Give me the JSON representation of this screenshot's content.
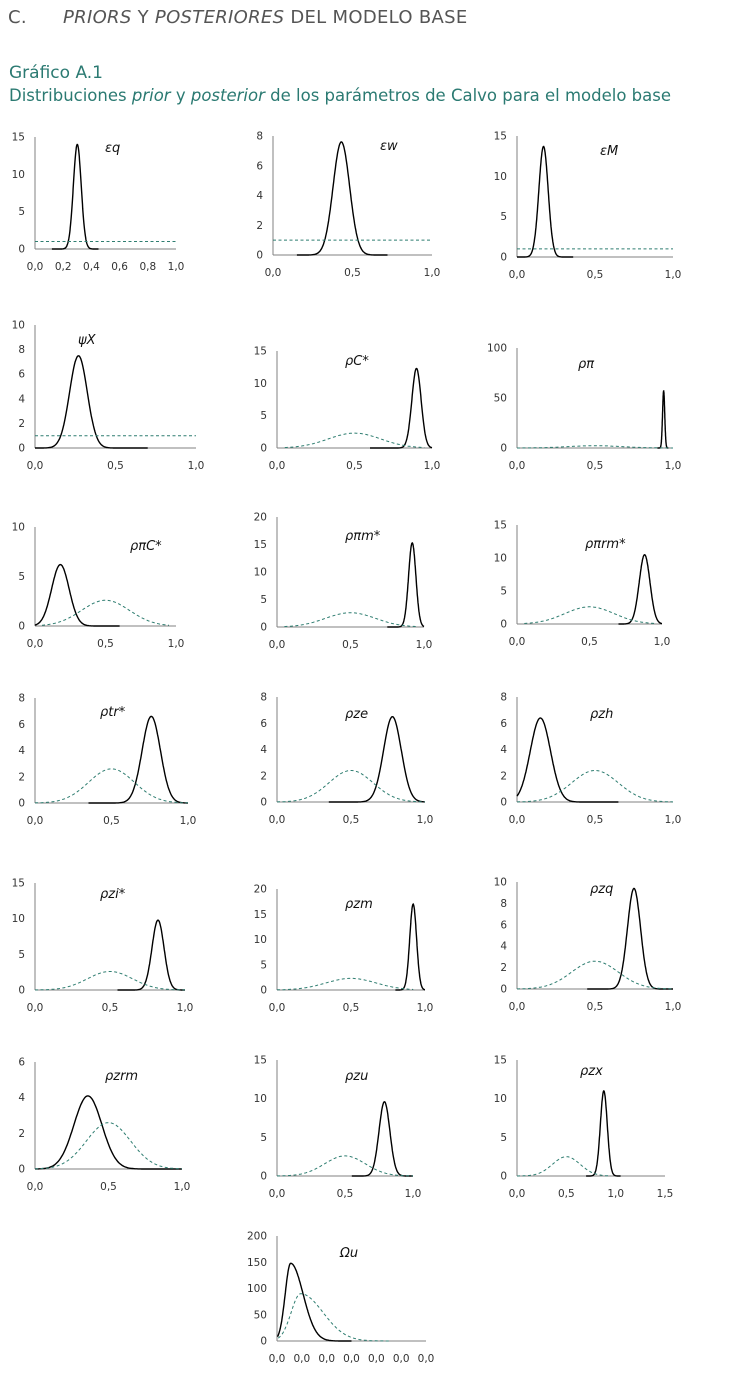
{
  "section": {
    "letter": "C.",
    "title_italic_1": "PRIORS",
    "title_mid": " Y ",
    "title_italic_2": "POSTERIORES",
    "title_end": " DEL MODELO BASE"
  },
  "figure": {
    "label": "Gráfico A.1",
    "title_part1": "Distribuciones ",
    "title_prior": "prior",
    "title_part2": " y ",
    "title_posterior": "posterior",
    "title_part3": " de los parámetros de Calvo para el modelo base"
  },
  "colors": {
    "posterior": "#000000",
    "prior": "#2e7d70",
    "axis": "#808080",
    "tick_text": "#333333"
  },
  "chart_data": [
    {
      "type": "line",
      "label": "εq",
      "xlim": [
        0,
        1
      ],
      "ylim": [
        0,
        15
      ],
      "xticks": [
        "0,0",
        "0,2",
        "0,4",
        "0,6",
        "0,8",
        "1,0"
      ],
      "yticks": [
        0,
        5,
        10,
        15
      ],
      "series": [
        {
          "kind": "posterior",
          "dist": "normal",
          "mean": 0.3,
          "sd": 0.028,
          "peak": 14,
          "xmin": 0.12,
          "xmax": 0.45
        },
        {
          "kind": "prior",
          "dist": "uniform",
          "x0": 0,
          "x1": 1,
          "level": 1
        }
      ]
    },
    {
      "type": "line",
      "label": "εw",
      "xlim": [
        0,
        1
      ],
      "ylim": [
        0,
        8
      ],
      "xticks": [
        "0,0",
        "0,5",
        "1,0"
      ],
      "yticks": [
        0,
        2,
        4,
        6,
        8
      ],
      "series": [
        {
          "kind": "posterior",
          "dist": "normal",
          "mean": 0.43,
          "sd": 0.052,
          "peak": 7.6,
          "xmin": 0.15,
          "xmax": 0.72
        },
        {
          "kind": "prior",
          "dist": "uniform",
          "x0": 0,
          "x1": 1,
          "level": 1
        }
      ]
    },
    {
      "type": "line",
      "label": "εM",
      "xlim": [
        0,
        1
      ],
      "ylim": [
        0,
        15
      ],
      "xticks": [
        "0,0",
        "0,5",
        "1,0"
      ],
      "yticks": [
        0,
        5,
        10,
        15
      ],
      "series": [
        {
          "kind": "posterior",
          "dist": "normal",
          "mean": 0.17,
          "sd": 0.03,
          "peak": 13.7,
          "xmin": 0,
          "xmax": 0.36
        },
        {
          "kind": "prior",
          "dist": "uniform",
          "x0": 0,
          "x1": 1,
          "level": 1
        }
      ]
    },
    {
      "type": "line",
      "label": "ψX",
      "xlim": [
        0,
        1
      ],
      "ylim": [
        0,
        10
      ],
      "xticks": [
        "0,0",
        "0,5",
        "1,0"
      ],
      "yticks": [
        0,
        2,
        4,
        6,
        8,
        10
      ],
      "series": [
        {
          "kind": "posterior",
          "dist": "normal",
          "mean": 0.27,
          "sd": 0.055,
          "peak": 7.5,
          "xmin": 0,
          "xmax": 0.7
        },
        {
          "kind": "prior",
          "dist": "uniform",
          "x0": 0,
          "x1": 1,
          "level": 1
        }
      ]
    },
    {
      "type": "line",
      "label": "ρC*",
      "xlim": [
        0,
        1
      ],
      "ylim": [
        0,
        15
      ],
      "xticks": [
        "0,0",
        "0,5",
        "1,0"
      ],
      "yticks": [
        0,
        5,
        10,
        15
      ],
      "series": [
        {
          "kind": "posterior",
          "dist": "normal",
          "mean": 0.9,
          "sd": 0.03,
          "peak": 12.3,
          "xmin": 0.6,
          "xmax": 1
        },
        {
          "kind": "prior",
          "dist": "normal",
          "mean": 0.5,
          "sd": 0.17,
          "peak": 2.3,
          "xmin": 0.05,
          "xmax": 0.95
        }
      ]
    },
    {
      "type": "line",
      "label": "ρπ",
      "xlim": [
        0,
        1
      ],
      "ylim": [
        0,
        100
      ],
      "xticks": [
        "0,0",
        "0,5",
        "1,0"
      ],
      "yticks": [
        0,
        50,
        100
      ],
      "series": [
        {
          "kind": "posterior",
          "dist": "normal",
          "mean": 0.94,
          "sd": 0.007,
          "peak": 57,
          "xmin": 0.9,
          "xmax": 0.97
        },
        {
          "kind": "prior",
          "dist": "normal",
          "mean": 0.5,
          "sd": 0.17,
          "peak": 2.3,
          "xmin": 0,
          "xmax": 1
        }
      ]
    },
    {
      "type": "line",
      "label": "ρπC*",
      "xlim": [
        0,
        1
      ],
      "ylim": [
        0,
        10
      ],
      "xticks": [
        "0,0",
        "0,5",
        "1,0"
      ],
      "yticks": [
        0,
        5,
        10
      ],
      "series": [
        {
          "kind": "posterior",
          "dist": "normal",
          "mean": 0.18,
          "sd": 0.062,
          "peak": 6.2,
          "xmin": 0,
          "xmax": 0.6
        },
        {
          "kind": "prior",
          "dist": "normal",
          "mean": 0.5,
          "sd": 0.17,
          "peak": 2.6,
          "xmin": 0.05,
          "xmax": 0.95
        }
      ]
    },
    {
      "type": "line",
      "label": "ρπm*",
      "xlim": [
        0,
        1
      ],
      "ylim": [
        0,
        20
      ],
      "xticks": [
        "0,0",
        "0,5",
        "1,0"
      ],
      "yticks": [
        0,
        5,
        10,
        15,
        20
      ],
      "series": [
        {
          "kind": "posterior",
          "dist": "normal",
          "mean": 0.92,
          "sd": 0.025,
          "peak": 15.3,
          "xmin": 0.75,
          "xmax": 1
        },
        {
          "kind": "prior",
          "dist": "normal",
          "mean": 0.5,
          "sd": 0.17,
          "peak": 2.6,
          "xmin": 0.05,
          "xmax": 0.95
        }
      ]
    },
    {
      "type": "line",
      "label": "ρπrm*",
      "xlim": [
        0,
        1
      ],
      "ylim": [
        0,
        15
      ],
      "xticks": [
        "0,0",
        "0,5",
        "1,0"
      ],
      "yticks": [
        0,
        5,
        10,
        15
      ],
      "series": [
        {
          "kind": "posterior",
          "dist": "normal",
          "mean": 0.88,
          "sd": 0.037,
          "peak": 10.5,
          "xmin": 0.7,
          "xmax": 1
        },
        {
          "kind": "prior",
          "dist": "normal",
          "mean": 0.5,
          "sd": 0.17,
          "peak": 2.6,
          "xmin": 0.05,
          "xmax": 0.95
        }
      ]
    },
    {
      "type": "line",
      "label": "ρtr*",
      "xlim": [
        0,
        1
      ],
      "ylim": [
        0,
        8
      ],
      "xticks": [
        "0,0",
        "0,5",
        "1,0"
      ],
      "yticks": [
        0,
        2,
        4,
        6,
        8
      ],
      "series": [
        {
          "kind": "posterior",
          "dist": "normal",
          "mean": 0.76,
          "sd": 0.06,
          "peak": 6.6,
          "xmin": 0.35,
          "xmax": 1
        },
        {
          "kind": "prior",
          "dist": "normal",
          "mean": 0.5,
          "sd": 0.15,
          "peak": 2.6,
          "xmin": 0,
          "xmax": 1
        }
      ]
    },
    {
      "type": "line",
      "label": "ρze",
      "xlim": [
        0,
        1
      ],
      "ylim": [
        0,
        8
      ],
      "xticks": [
        "0,0",
        "0,5",
        "1,0"
      ],
      "yticks": [
        0,
        2,
        4,
        6,
        8
      ],
      "series": [
        {
          "kind": "posterior",
          "dist": "normal",
          "mean": 0.78,
          "sd": 0.06,
          "peak": 6.5,
          "xmin": 0.35,
          "xmax": 1
        },
        {
          "kind": "prior",
          "dist": "normal",
          "mean": 0.5,
          "sd": 0.15,
          "peak": 2.4,
          "xmin": 0,
          "xmax": 1
        }
      ]
    },
    {
      "type": "line",
      "label": "ρzh",
      "xlim": [
        0,
        1
      ],
      "ylim": [
        0,
        8
      ],
      "xticks": [
        "0,0",
        "0,5",
        "1,0"
      ],
      "yticks": [
        0,
        2,
        4,
        6,
        8
      ],
      "series": [
        {
          "kind": "posterior",
          "dist": "normal",
          "mean": 0.15,
          "sd": 0.065,
          "peak": 6.4,
          "xmin": 0,
          "xmax": 0.65
        },
        {
          "kind": "prior",
          "dist": "normal",
          "mean": 0.5,
          "sd": 0.15,
          "peak": 2.4,
          "xmin": 0,
          "xmax": 1
        }
      ]
    },
    {
      "type": "line",
      "label": "ρzi*",
      "xlim": [
        0,
        1
      ],
      "ylim": [
        0,
        15
      ],
      "xticks": [
        "0,0",
        "0,5",
        "1,0"
      ],
      "yticks": [
        0,
        5,
        10,
        15
      ],
      "series": [
        {
          "kind": "posterior",
          "dist": "normal",
          "mean": 0.82,
          "sd": 0.04,
          "peak": 9.8,
          "xmin": 0.55,
          "xmax": 1
        },
        {
          "kind": "prior",
          "dist": "normal",
          "mean": 0.5,
          "sd": 0.15,
          "peak": 2.6,
          "xmin": 0,
          "xmax": 1
        }
      ]
    },
    {
      "type": "line",
      "label": "ρzm",
      "xlim": [
        0,
        1
      ],
      "ylim": [
        0,
        20
      ],
      "xticks": [
        "0,0",
        "0,5",
        "1,0"
      ],
      "yticks": [
        0,
        5,
        10,
        15,
        20
      ],
      "series": [
        {
          "kind": "posterior",
          "dist": "normal",
          "mean": 0.92,
          "sd": 0.023,
          "peak": 17,
          "xmin": 0.8,
          "xmax": 1
        },
        {
          "kind": "prior",
          "dist": "normal",
          "mean": 0.5,
          "sd": 0.17,
          "peak": 2.3,
          "xmin": 0,
          "xmax": 0.92
        }
      ]
    },
    {
      "type": "line",
      "label": "ρzq",
      "xlim": [
        0,
        1
      ],
      "ylim": [
        0,
        10
      ],
      "xticks": [
        "0,0",
        "0,5",
        "1,0"
      ],
      "yticks": [
        0,
        2,
        4,
        6,
        8,
        10
      ],
      "series": [
        {
          "kind": "posterior",
          "dist": "normal",
          "mean": 0.75,
          "sd": 0.042,
          "peak": 9.4,
          "xmin": 0.45,
          "xmax": 1
        },
        {
          "kind": "prior",
          "dist": "normal",
          "mean": 0.5,
          "sd": 0.15,
          "peak": 2.6,
          "xmin": 0,
          "xmax": 1
        }
      ]
    },
    {
      "type": "line",
      "label": "ρzrm",
      "xlim": [
        0,
        1
      ],
      "ylim": [
        0,
        6
      ],
      "xticks": [
        "0,0",
        "0,5",
        "1,0"
      ],
      "yticks": [
        0,
        2,
        4,
        6
      ],
      "series": [
        {
          "kind": "posterior",
          "dist": "normal",
          "mean": 0.36,
          "sd": 0.095,
          "peak": 4.1,
          "xmin": 0,
          "xmax": 1
        },
        {
          "kind": "prior",
          "dist": "normal",
          "mean": 0.5,
          "sd": 0.15,
          "peak": 2.6,
          "xmin": 0,
          "xmax": 1
        }
      ]
    },
    {
      "type": "line",
      "label": "ρzu",
      "xlim": [
        0,
        1
      ],
      "ylim": [
        0,
        15
      ],
      "xticks": [
        "0,0",
        "0,5",
        "1,0"
      ],
      "yticks": [
        0,
        5,
        10,
        15
      ],
      "series": [
        {
          "kind": "posterior",
          "dist": "normal",
          "mean": 0.79,
          "sd": 0.04,
          "peak": 9.6,
          "xmin": 0.55,
          "xmax": 1
        },
        {
          "kind": "prior",
          "dist": "normal",
          "mean": 0.5,
          "sd": 0.15,
          "peak": 2.6,
          "xmin": 0,
          "xmax": 1
        }
      ]
    },
    {
      "type": "line",
      "label": "ρzx",
      "xlim": [
        0,
        1.5
      ],
      "ylim": [
        0,
        15
      ],
      "xticks": [
        "0,0",
        "0,5",
        "1,0",
        "1,5"
      ],
      "yticks": [
        0,
        5,
        10,
        15
      ],
      "series": [
        {
          "kind": "posterior",
          "dist": "normal",
          "mean": 0.88,
          "sd": 0.035,
          "peak": 11,
          "xmin": 0.7,
          "xmax": 1.05
        },
        {
          "kind": "prior",
          "dist": "normal",
          "mean": 0.5,
          "sd": 0.14,
          "peak": 2.5,
          "xmin": 0,
          "xmax": 0.95
        }
      ]
    },
    {
      "type": "line",
      "label": "Ωu",
      "xlim": [
        0,
        6
      ],
      "ylim": [
        0,
        200
      ],
      "xticks": [
        "0,0",
        "0,0",
        "0,0",
        "0,0",
        "0,0",
        "0,0",
        "0,0"
      ],
      "yticks": [
        0,
        50,
        100,
        150,
        200
      ],
      "series": [
        {
          "kind": "posterior",
          "dist": "skewed",
          "mode": 0.55,
          "peak": 148,
          "xmin": 0.02,
          "xmax": 3.0,
          "sd_left": 0.22,
          "sd_right": 0.5
        },
        {
          "kind": "prior",
          "dist": "skewed",
          "mode": 0.95,
          "peak": 90,
          "xmin": 0.05,
          "xmax": 4.5,
          "sd_left": 0.38,
          "sd_right": 0.9
        }
      ]
    }
  ]
}
